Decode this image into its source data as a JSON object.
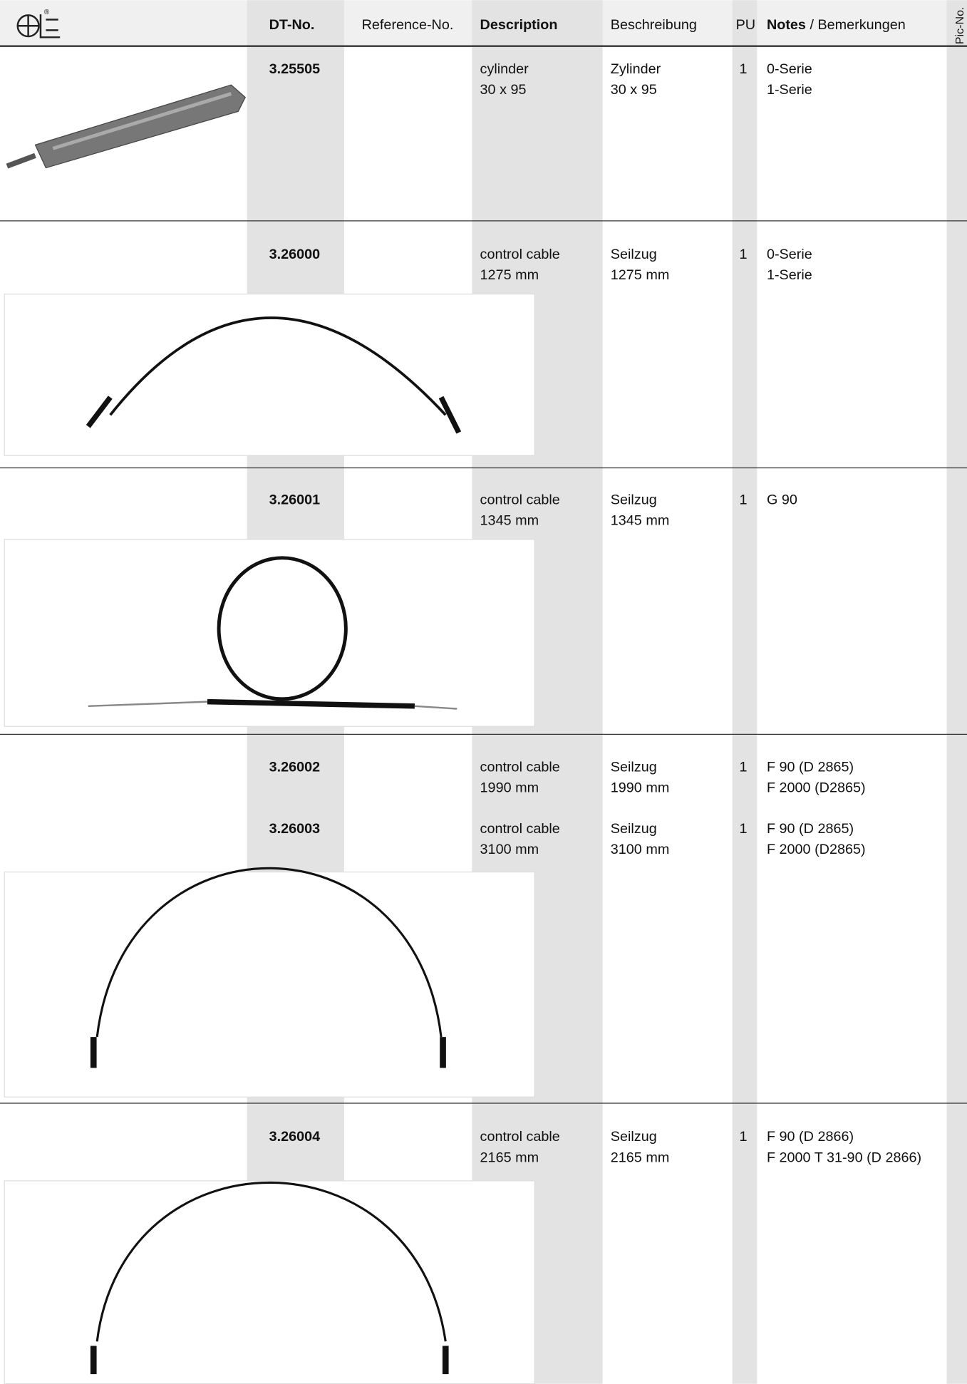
{
  "header": {
    "dt_no": "DT-No.",
    "reference_no": "Reference-No.",
    "description": "Description",
    "beschreibung": "Beschreibung",
    "pu": "PU",
    "notes": "Notes",
    "notes_de": "/ Bemerkungen",
    "pic_no": "Pic-No."
  },
  "groups": [
    {
      "items": [
        {
          "dt_no": "3.25505",
          "description": [
            "cylinder",
            "30 x 95"
          ],
          "beschreibung": [
            "Zylinder",
            "30 x 95"
          ],
          "pu": "1",
          "notes": [
            "0-Serie",
            "1-Serie"
          ]
        }
      ]
    },
    {
      "items": [
        {
          "dt_no": "3.26000",
          "description": [
            "control cable",
            "1275 mm"
          ],
          "beschreibung": [
            "Seilzug",
            "1275 mm"
          ],
          "pu": "1",
          "notes": [
            "0-Serie",
            "1-Serie"
          ]
        }
      ]
    },
    {
      "items": [
        {
          "dt_no": "3.26001",
          "description": [
            "control cable",
            "1345 mm"
          ],
          "beschreibung": [
            "Seilzug",
            "1345 mm"
          ],
          "pu": "1",
          "notes": [
            "G 90"
          ]
        }
      ]
    },
    {
      "items": [
        {
          "dt_no": "3.26002",
          "description": [
            "control cable",
            "1990 mm"
          ],
          "beschreibung": [
            "Seilzug",
            "1990 mm"
          ],
          "pu": "1",
          "notes": [
            "F 90 (D 2865)",
            "F 2000 (D2865)"
          ]
        },
        {
          "dt_no": "3.26003",
          "description": [
            "control cable",
            "3100 mm"
          ],
          "beschreibung": [
            "Seilzug",
            "3100 mm"
          ],
          "pu": "1",
          "notes": [
            "F 90 (D 2865)",
            "F 2000 (D2865)"
          ]
        }
      ]
    },
    {
      "items": [
        {
          "dt_no": "3.26004",
          "description": [
            "control cable",
            "2165 mm"
          ],
          "beschreibung": [
            "Seilzug",
            "2165 mm"
          ],
          "pu": "1",
          "notes": [
            "F 90 (D 2866)",
            "F 2000 T 31-90 (D 2866)"
          ]
        }
      ]
    }
  ]
}
